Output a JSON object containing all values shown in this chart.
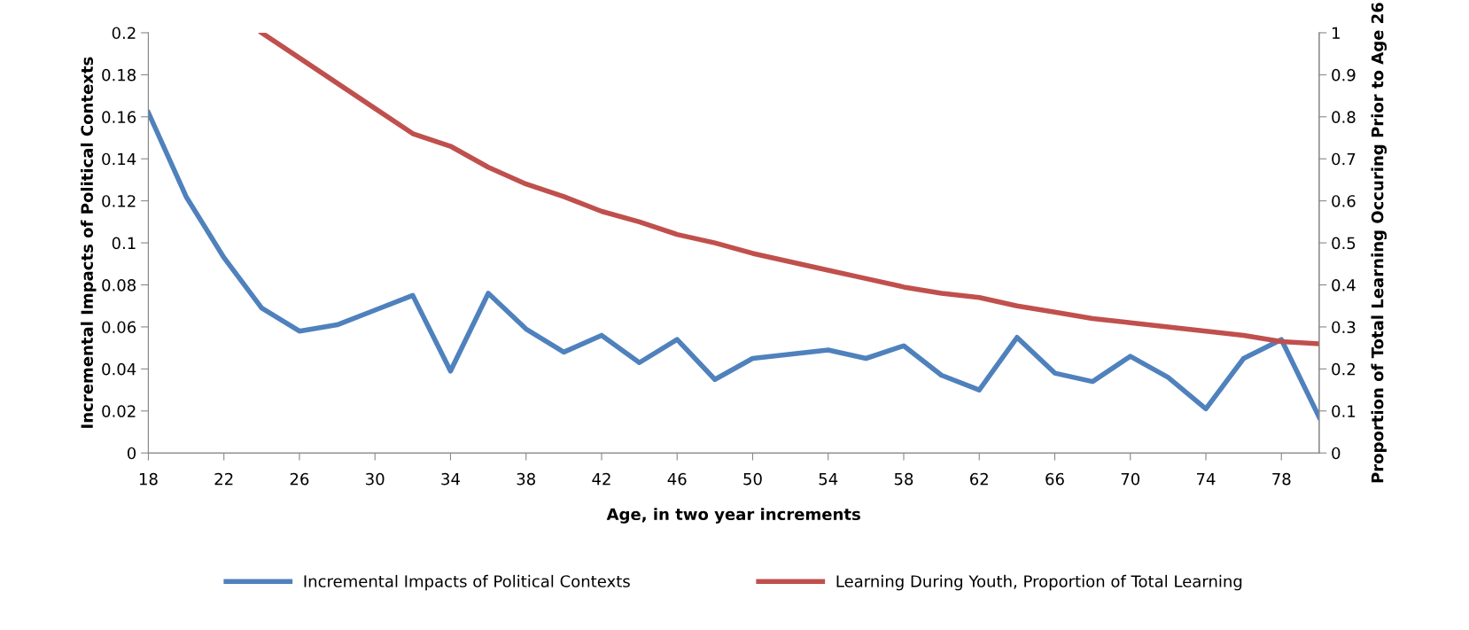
{
  "chart_data": {
    "type": "line",
    "xlabel": "Age, in two year increments",
    "ylabel": "Incremental Impacts of Political Contexts",
    "y2label": "Proportion of Total Learning Occuring Prior to Age 26",
    "x": [
      18,
      20,
      22,
      24,
      26,
      28,
      30,
      32,
      34,
      36,
      38,
      40,
      42,
      44,
      46,
      48,
      50,
      52,
      54,
      56,
      58,
      60,
      62,
      64,
      66,
      68,
      70,
      72,
      74,
      76,
      78,
      80
    ],
    "series": [
      {
        "name": "Incremental Impacts of Political Contexts",
        "color": "#4f81bd",
        "values": [
          0.162,
          0.122,
          0.093,
          0.069,
          0.058,
          0.061,
          0.068,
          0.075,
          0.039,
          0.076,
          0.059,
          0.048,
          0.056,
          0.043,
          0.054,
          0.035,
          0.045,
          0.047,
          0.049,
          0.045,
          0.051,
          0.037,
          0.03,
          0.055,
          0.038,
          0.034,
          0.046,
          0.036,
          0.021,
          0.045,
          0.054,
          0.017
        ]
      },
      {
        "name": "Learning During Youth, Proportion of Total Learning",
        "color": "#c0504d",
        "axis": "y2",
        "values": [
          null,
          null,
          null,
          1.0,
          0.94,
          0.88,
          0.82,
          0.76,
          0.73,
          0.68,
          0.64,
          0.61,
          0.575,
          0.55,
          0.52,
          0.5,
          0.475,
          0.455,
          0.435,
          0.415,
          0.395,
          0.38,
          0.37,
          0.35,
          0.335,
          0.32,
          0.31,
          0.3,
          0.29,
          0.28,
          0.265,
          0.26
        ]
      }
    ],
    "xlim": [
      18,
      80
    ],
    "xticks": [
      18,
      22,
      26,
      30,
      34,
      38,
      42,
      46,
      50,
      54,
      58,
      62,
      66,
      70,
      74,
      78
    ],
    "ylim": [
      0,
      0.2
    ],
    "yticks": [
      0,
      0.02,
      0.04,
      0.06,
      0.08,
      0.1,
      0.12,
      0.14,
      0.16,
      0.18,
      0.2
    ],
    "y2lim": [
      0,
      1
    ],
    "y2ticks": [
      0,
      0.1,
      0.2,
      0.3,
      0.4,
      0.5,
      0.6,
      0.7,
      0.8,
      0.9,
      1
    ],
    "grid": false,
    "legend": "bottom",
    "marker": "none",
    "line_style": "solid"
  }
}
